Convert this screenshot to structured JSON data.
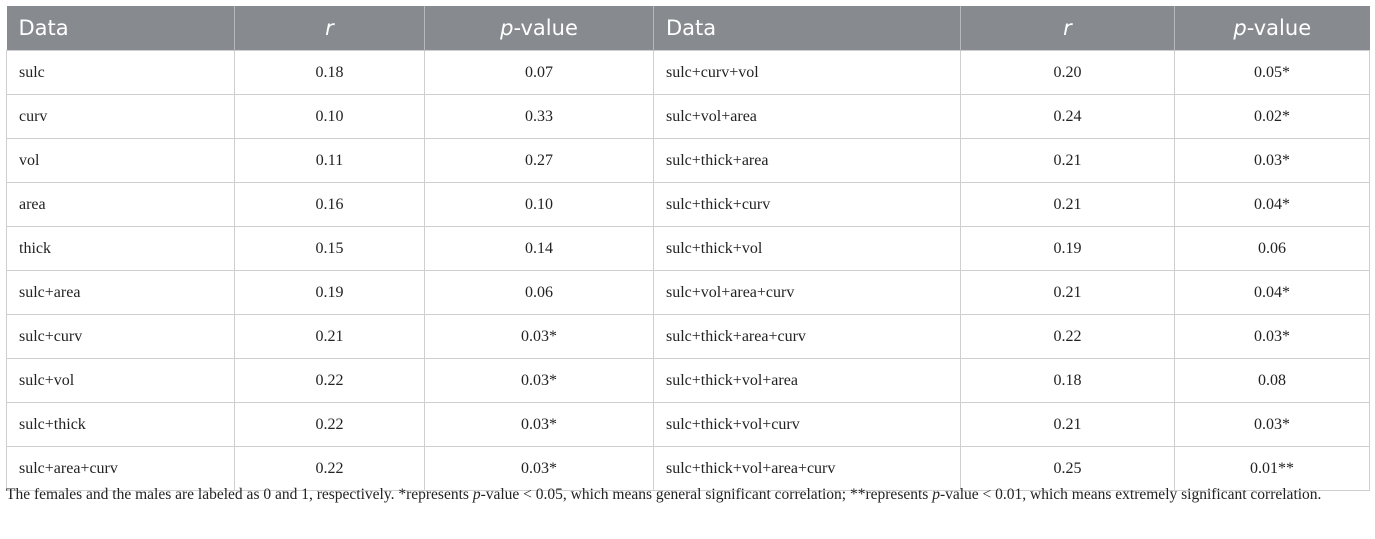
{
  "header": {
    "col1": "Data",
    "col2": "r",
    "col3_italic": "p",
    "col3_rest": "-value",
    "col4": "Data",
    "col5": "r",
    "col6_italic": "p",
    "col6_rest": "-value"
  },
  "rows": [
    [
      "sulc",
      "0.18",
      "0.07",
      "sulc+curv+vol",
      "0.20",
      "0.05*"
    ],
    [
      "curv",
      "0.10",
      "0.33",
      "sulc+vol+area",
      "0.24",
      "0.02*"
    ],
    [
      "vol",
      "0.11",
      "0.27",
      "sulc+thick+area",
      "0.21",
      "0.03*"
    ],
    [
      "area",
      "0.16",
      "0.10",
      "sulc+thick+curv",
      "0.21",
      "0.04*"
    ],
    [
      "thick",
      "0.15",
      "0.14",
      "sulc+thick+vol",
      "0.19",
      "0.06"
    ],
    [
      "sulc+area",
      "0.19",
      "0.06",
      "sulc+vol+area+curv",
      "0.21",
      "0.04*"
    ],
    [
      "sulc+curv",
      "0.21",
      "0.03*",
      "sulc+thick+area+curv",
      "0.22",
      "0.03*"
    ],
    [
      "sulc+vol",
      "0.22",
      "0.03*",
      "sulc+thick+vol+area",
      "0.18",
      "0.08"
    ],
    [
      "sulc+thick",
      "0.22",
      "0.03*",
      "sulc+thick+vol+curv",
      "0.21",
      "0.03*"
    ],
    [
      "sulc+area+curv",
      "0.22",
      "0.03*",
      "sulc+thick+vol+area+curv",
      "0.25",
      "0.01**"
    ]
  ],
  "footnote": {
    "part1": "The females and the males are labeled as 0 and 1, respectively. *represents ",
    "p1": "p",
    "part2": "-value < 0.05, which means general significant correlation; **represents ",
    "p2": "p",
    "part3": "-value < 0.01, which means extremely significant correlation."
  }
}
